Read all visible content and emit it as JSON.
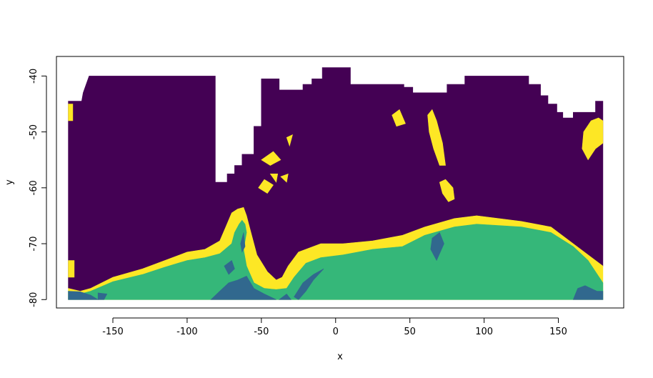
{
  "chart_data": {
    "type": "heatmap",
    "title": "",
    "xlabel": "x",
    "ylabel": "y",
    "xlim": [
      -188,
      194
    ],
    "ylim": [
      -81.5,
      -36.5
    ],
    "x_ticks": [
      -150,
      -100,
      -50,
      0,
      50,
      100,
      150
    ],
    "x_tick_labels": [
      "-150",
      "-100",
      "-50",
      "0",
      "50",
      "100",
      "150"
    ],
    "y_ticks": [
      -40,
      -50,
      -60,
      -70,
      -80
    ],
    "y_tick_labels": [
      "-40",
      "-50",
      "-60",
      "-70",
      "-80"
    ],
    "legend": "none",
    "grid": false,
    "colors": {
      "open_ocean": "#440154",
      "sea_ice_edge": "#fde725",
      "ice_shelf": "#35b779",
      "land_ice": "#31688e",
      "frame": "#000000"
    },
    "regions": {
      "open_ocean": [
        [
          [
            -180,
            -44.5
          ],
          [
            -171,
            -44.5
          ],
          [
            -170,
            -43
          ],
          [
            -166,
            -40
          ],
          [
            -81,
            -40
          ],
          [
            -81,
            -59
          ],
          [
            -73,
            -59
          ],
          [
            -73,
            -57.5
          ],
          [
            -68,
            -57.5
          ],
          [
            -68,
            -56
          ],
          [
            -63,
            -56
          ],
          [
            -63,
            -54
          ],
          [
            -55,
            -54
          ],
          [
            -55,
            -49
          ],
          [
            -50,
            -49
          ],
          [
            -50,
            -40.5
          ],
          [
            -38,
            -40.5
          ],
          [
            -38,
            -42.5
          ],
          [
            -22,
            -42.5
          ],
          [
            -22,
            -41.5
          ],
          [
            -16,
            -41.5
          ],
          [
            -16,
            -40.5
          ],
          [
            -9,
            -40.5
          ],
          [
            -9,
            -38.5
          ],
          [
            10,
            -38.5
          ],
          [
            10,
            -41.5
          ],
          [
            46,
            -41.5
          ],
          [
            46,
            -42
          ],
          [
            52,
            -42
          ],
          [
            52,
            -43
          ],
          [
            75,
            -43
          ],
          [
            75,
            -41.5
          ],
          [
            87,
            -41.5
          ],
          [
            87,
            -40
          ],
          [
            130,
            -40
          ],
          [
            130,
            -41.5
          ],
          [
            138,
            -41.5
          ],
          [
            138,
            -43.5
          ],
          [
            143,
            -43.5
          ],
          [
            143,
            -45
          ],
          [
            149,
            -45
          ],
          [
            149,
            -46.5
          ],
          [
            153,
            -46.5
          ],
          [
            153,
            -47.5
          ],
          [
            160,
            -47.5
          ],
          [
            160,
            -46.5
          ],
          [
            175,
            -46.5
          ],
          [
            175,
            -44.5
          ],
          [
            180,
            -44.5
          ],
          [
            180,
            -74
          ],
          [
            175,
            -73
          ],
          [
            165,
            -71
          ],
          [
            145,
            -67
          ],
          [
            125,
            -66
          ],
          [
            95,
            -65
          ],
          [
            80,
            -65.5
          ],
          [
            60,
            -67
          ],
          [
            45,
            -68.5
          ],
          [
            25,
            -69.5
          ],
          [
            5,
            -70
          ],
          [
            -10,
            -70
          ],
          [
            -25,
            -71.5
          ],
          [
            -32,
            -74
          ],
          [
            -36,
            -76
          ],
          [
            -40,
            -76.5
          ],
          [
            -46,
            -75
          ],
          [
            -53,
            -72
          ],
          [
            -58,
            -67
          ],
          [
            -60,
            -65
          ],
          [
            -62,
            -63.5
          ],
          [
            -66,
            -63.8
          ],
          [
            -70,
            -64.5
          ],
          [
            -74,
            -67
          ],
          [
            -78,
            -69.5
          ],
          [
            -88,
            -71
          ],
          [
            -100,
            -71.5
          ],
          [
            -115,
            -73
          ],
          [
            -130,
            -74.5
          ],
          [
            -150,
            -76
          ],
          [
            -165,
            -78
          ],
          [
            -172,
            -78.5
          ],
          [
            -180,
            -78
          ]
        ]
      ],
      "sea_ice_edge": [
        [
          [
            -180,
            -78
          ],
          [
            -172,
            -78.5
          ],
          [
            -165,
            -78
          ],
          [
            -150,
            -76
          ],
          [
            -130,
            -74.5
          ],
          [
            -115,
            -73
          ],
          [
            -100,
            -71.5
          ],
          [
            -88,
            -71
          ],
          [
            -78,
            -69.5
          ],
          [
            -74,
            -67
          ],
          [
            -70,
            -64.5
          ],
          [
            -66,
            -63.8
          ],
          [
            -62,
            -63.5
          ],
          [
            -60,
            -65
          ],
          [
            -58,
            -67
          ],
          [
            -53,
            -72
          ],
          [
            -46,
            -75
          ],
          [
            -40,
            -76.5
          ],
          [
            -36,
            -76
          ],
          [
            -32,
            -74
          ],
          [
            -25,
            -71.5
          ],
          [
            -10,
            -70
          ],
          [
            5,
            -70
          ],
          [
            25,
            -69.5
          ],
          [
            45,
            -68.5
          ],
          [
            60,
            -67
          ],
          [
            80,
            -65.5
          ],
          [
            95,
            -65
          ],
          [
            125,
            -66
          ],
          [
            145,
            -67
          ],
          [
            165,
            -71
          ],
          [
            175,
            -73
          ],
          [
            180,
            -74
          ],
          [
            180,
            -80
          ],
          [
            -180,
            -80
          ]
        ],
        [
          [
            167,
            -50
          ],
          [
            172,
            -48
          ],
          [
            177,
            -47.5
          ],
          [
            180,
            -48
          ],
          [
            180,
            -52
          ],
          [
            175,
            -53
          ],
          [
            170,
            -55
          ],
          [
            166,
            -53
          ]
        ],
        [
          [
            -180,
            -45
          ],
          [
            -177,
            -45
          ],
          [
            -177,
            -48
          ],
          [
            -180,
            -48
          ]
        ],
        [
          [
            62,
            -47
          ],
          [
            65,
            -46
          ],
          [
            68,
            -48
          ],
          [
            72,
            -52
          ],
          [
            74,
            -56
          ],
          [
            70,
            -56
          ],
          [
            66,
            -53
          ],
          [
            63,
            -50
          ]
        ],
        [
          [
            70,
            -59
          ],
          [
            74,
            -58.5
          ],
          [
            79,
            -60
          ],
          [
            80,
            -62
          ],
          [
            76,
            -62.5
          ],
          [
            72,
            -61
          ]
        ],
        [
          [
            -52,
            -60
          ],
          [
            -48,
            -58.5
          ],
          [
            -42,
            -59.5
          ],
          [
            -46,
            -61
          ]
        ],
        [
          [
            -44,
            -57.5
          ],
          [
            -39,
            -57.5
          ],
          [
            -40,
            -59
          ]
        ],
        [
          [
            -37,
            -58
          ],
          [
            -32,
            -57.5
          ],
          [
            -33,
            -59
          ]
        ],
        [
          [
            -33,
            -51
          ],
          [
            -29,
            -50.5
          ],
          [
            -31,
            -52.5
          ]
        ],
        [
          [
            -50,
            -55
          ],
          [
            -42,
            -53.5
          ],
          [
            -37,
            -55
          ],
          [
            -44,
            -56
          ]
        ],
        [
          [
            38,
            -47
          ],
          [
            43,
            -46
          ],
          [
            47,
            -48.5
          ],
          [
            41,
            -49
          ]
        ],
        [
          [
            -180,
            -73
          ],
          [
            -176,
            -73
          ],
          [
            -176,
            -76
          ],
          [
            -180,
            -76
          ]
        ]
      ],
      "ice_shelf": [
        [
          [
            -180,
            -78.5
          ],
          [
            -172,
            -79
          ],
          [
            -165,
            -78.5
          ],
          [
            -150,
            -76.8
          ],
          [
            -130,
            -75.5
          ],
          [
            -115,
            -74.2
          ],
          [
            -100,
            -73
          ],
          [
            -88,
            -72.5
          ],
          [
            -78,
            -71.8
          ],
          [
            -70,
            -70
          ],
          [
            -68,
            -68
          ],
          [
            -65,
            -66.5
          ],
          [
            -63,
            -65.8
          ],
          [
            -61,
            -66.5
          ],
          [
            -60,
            -68
          ],
          [
            -62,
            -71
          ],
          [
            -60,
            -74
          ],
          [
            -55,
            -77
          ],
          [
            -48,
            -78
          ],
          [
            -40,
            -78.2
          ],
          [
            -33,
            -78
          ],
          [
            -28,
            -76
          ],
          [
            -20,
            -73.5
          ],
          [
            -10,
            -72.5
          ],
          [
            5,
            -72
          ],
          [
            25,
            -71
          ],
          [
            45,
            -70.5
          ],
          [
            60,
            -68.5
          ],
          [
            80,
            -67
          ],
          [
            95,
            -66.5
          ],
          [
            125,
            -67
          ],
          [
            145,
            -68
          ],
          [
            160,
            -70.5
          ],
          [
            170,
            -73
          ],
          [
            175,
            -75
          ],
          [
            180,
            -77
          ],
          [
            180,
            -80
          ],
          [
            -180,
            -80
          ]
        ]
      ],
      "land_ice": [
        [
          [
            -180,
            -78.5
          ],
          [
            -172,
            -78.6
          ],
          [
            -165,
            -79.2
          ],
          [
            -160,
            -80
          ],
          [
            -180,
            -80
          ]
        ],
        [
          [
            -160,
            -78.8
          ],
          [
            -154,
            -79
          ],
          [
            -156,
            -80
          ],
          [
            -160,
            -80
          ]
        ],
        [
          [
            -84,
            -80
          ],
          [
            -78,
            -78.5
          ],
          [
            -72,
            -77
          ],
          [
            -66,
            -76.5
          ],
          [
            -60,
            -75.8
          ],
          [
            -55,
            -78
          ],
          [
            -48,
            -79
          ],
          [
            -40,
            -80
          ]
        ],
        [
          [
            -75,
            -74
          ],
          [
            -70,
            -73
          ],
          [
            -68,
            -74.5
          ],
          [
            -72,
            -75.5
          ]
        ],
        [
          [
            -64,
            -70
          ],
          [
            -62,
            -68
          ],
          [
            -61,
            -70.5
          ],
          [
            -63,
            -71.5
          ]
        ],
        [
          [
            -28,
            -79.5
          ],
          [
            -22,
            -77
          ],
          [
            -15,
            -75.5
          ],
          [
            -8,
            -74.5
          ],
          [
            -15,
            -76.5
          ],
          [
            -20,
            -78.5
          ],
          [
            -25,
            -80
          ]
        ],
        [
          [
            -38,
            -80
          ],
          [
            -33,
            -79
          ],
          [
            -30,
            -80
          ]
        ],
        [
          [
            65,
            -69
          ],
          [
            70,
            -68
          ],
          [
            73,
            -70
          ],
          [
            68,
            -73
          ],
          [
            64,
            -71
          ]
        ],
        [
          [
            160,
            -80
          ],
          [
            163,
            -78
          ],
          [
            168,
            -77.5
          ],
          [
            172,
            -78
          ],
          [
            176,
            -78.5
          ],
          [
            180,
            -78.5
          ],
          [
            180,
            -80
          ]
        ]
      ]
    }
  }
}
